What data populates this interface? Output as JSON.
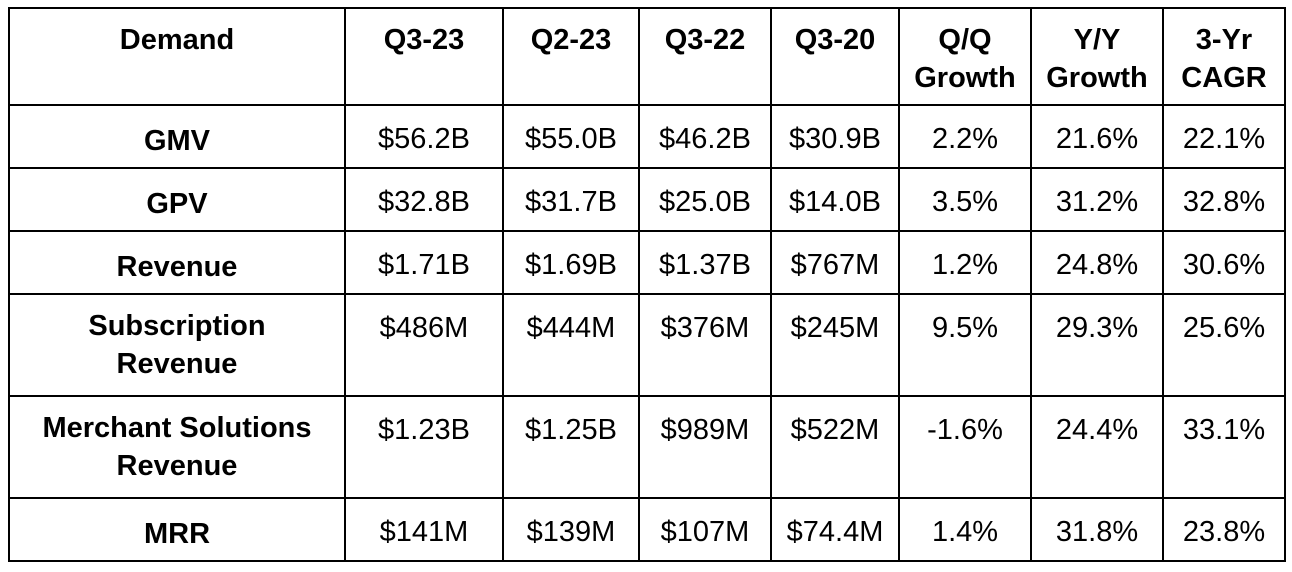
{
  "chart_data": {
    "type": "table",
    "columns": [
      "Demand",
      "Q3-23",
      "Q2-23",
      "Q3-22",
      "Q3-20",
      "Q/Q Growth",
      "Y/Y Growth",
      "3-Yr CAGR"
    ],
    "header_lines": [
      [
        "Demand"
      ],
      [
        "Q3-23"
      ],
      [
        "Q2-23"
      ],
      [
        "Q3-22"
      ],
      [
        "Q3-20"
      ],
      [
        "Q/Q",
        "Growth"
      ],
      [
        "Y/Y",
        "Growth"
      ],
      [
        "3-Yr",
        "CAGR"
      ]
    ],
    "rows": [
      {
        "label_lines": [
          "GMV"
        ],
        "cells": [
          "$56.2B",
          "$55.0B",
          "$46.2B",
          "$30.9B",
          "2.2%",
          "21.6%",
          "22.1%"
        ]
      },
      {
        "label_lines": [
          "GPV"
        ],
        "cells": [
          "$32.8B",
          "$31.7B",
          "$25.0B",
          "$14.0B",
          "3.5%",
          "31.2%",
          "32.8%"
        ]
      },
      {
        "label_lines": [
          "Revenue"
        ],
        "cells": [
          "$1.71B",
          "$1.69B",
          "$1.37B",
          "$767M",
          "1.2%",
          "24.8%",
          "30.6%"
        ]
      },
      {
        "label_lines": [
          "Subscription",
          "Revenue"
        ],
        "cells": [
          "$486M",
          "$444M",
          "$376M",
          "$245M",
          "9.5%",
          "29.3%",
          "25.6%"
        ]
      },
      {
        "label_lines": [
          "Merchant Solutions",
          "Revenue"
        ],
        "cells": [
          "$1.23B",
          "$1.25B",
          "$989M",
          "$522M",
          "-1.6%",
          "24.4%",
          "33.1%"
        ]
      },
      {
        "label_lines": [
          "MRR"
        ],
        "cells": [
          "$141M",
          "$139M",
          "$107M",
          "$74.4M",
          "1.4%",
          "31.8%",
          "23.8%"
        ]
      }
    ]
  }
}
